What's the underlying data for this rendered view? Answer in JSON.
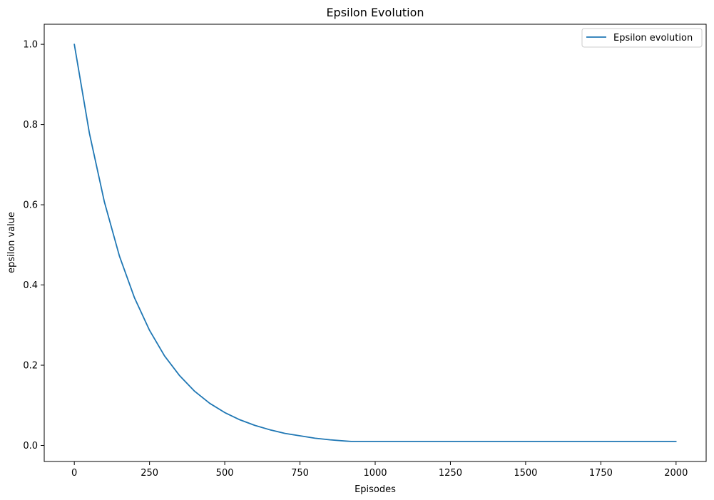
{
  "chart_data": {
    "type": "line",
    "title": "Epsilon Evolution",
    "xlabel": "Episodes",
    "ylabel": "epsilon value",
    "xlim": [
      -100,
      2100
    ],
    "ylim": [
      -0.04,
      1.05
    ],
    "xticks": [
      0,
      250,
      500,
      750,
      1000,
      1250,
      1500,
      1750,
      2000
    ],
    "xtick_labels": [
      "0",
      "250",
      "500",
      "750",
      "1000",
      "1250",
      "1500",
      "1750",
      "2000"
    ],
    "yticks": [
      0.0,
      0.2,
      0.4,
      0.6,
      0.8,
      1.0
    ],
    "ytick_labels": [
      "0.0",
      "0.2",
      "0.4",
      "0.6",
      "0.8",
      "1.0"
    ],
    "grid": false,
    "legend_position": "top-right",
    "series": [
      {
        "name": "Epsilon evolution",
        "color": "#1f77b4",
        "x": [
          0,
          50,
          100,
          150,
          200,
          250,
          300,
          350,
          400,
          450,
          500,
          550,
          600,
          650,
          700,
          750,
          800,
          850,
          900,
          920,
          1000,
          1250,
          1500,
          1750,
          2000
        ],
        "y": [
          1.0,
          0.779,
          0.607,
          0.472,
          0.368,
          0.287,
          0.223,
          0.174,
          0.135,
          0.105,
          0.082,
          0.064,
          0.05,
          0.039,
          0.03,
          0.024,
          0.018,
          0.014,
          0.011,
          0.01,
          0.01,
          0.01,
          0.01,
          0.01,
          0.01
        ]
      }
    ]
  }
}
